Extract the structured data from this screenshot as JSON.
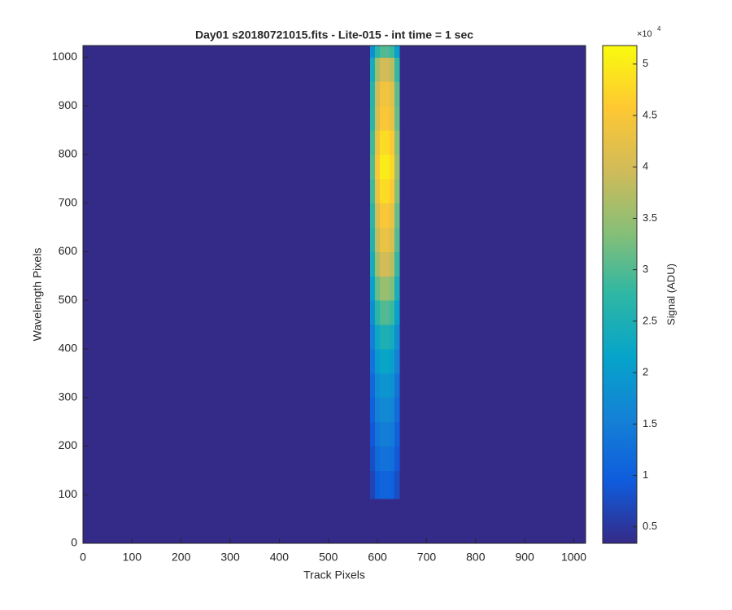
{
  "chart_data": {
    "type": "heatmap",
    "title": "Day01  s20180721015.fits - Lite-015 - int time = 1 sec",
    "xlabel": "Track Pixels",
    "ylabel": "Wavelength Pixels",
    "colorbar_label": "Signal (ADU)",
    "colorbar_scale": {
      "base": "×10",
      "exponent": "4"
    },
    "xlim": [
      0,
      1024
    ],
    "ylim": [
      0,
      1024
    ],
    "xticks": [
      0,
      100,
      200,
      300,
      400,
      500,
      600,
      700,
      800,
      900,
      1000
    ],
    "yticks": [
      0,
      100,
      200,
      300,
      400,
      500,
      600,
      700,
      800,
      900,
      1000
    ],
    "clim": [
      3400,
      51800
    ],
    "cticks": [
      {
        "value": 5000,
        "label": "0.5"
      },
      {
        "value": 10000,
        "label": "1"
      },
      {
        "value": 15000,
        "label": "1.5"
      },
      {
        "value": 20000,
        "label": "2"
      },
      {
        "value": 25000,
        "label": "2.5"
      },
      {
        "value": 30000,
        "label": "3"
      },
      {
        "value": 35000,
        "label": "3.5"
      },
      {
        "value": 40000,
        "label": "4"
      },
      {
        "value": 45000,
        "label": "4.5"
      },
      {
        "value": 50000,
        "label": "5"
      }
    ],
    "colormap": [
      "#352a87",
      "#0f5cdd",
      "#1481d6",
      "#06a4ca",
      "#2eb7a4",
      "#87bf77",
      "#d1bb59",
      "#fec832",
      "#f9fb0e"
    ],
    "x_bins": [
      0,
      585,
      595,
      605,
      615,
      625,
      635,
      645,
      1024
    ],
    "y_bins": [
      0,
      92,
      150,
      200,
      250,
      300,
      350,
      400,
      450,
      500,
      550,
      600,
      650,
      700,
      750,
      800,
      850,
      900,
      950,
      1000,
      1024
    ],
    "z": [
      [
        3500,
        3500,
        3500,
        3500,
        3500,
        3500,
        3500,
        3500
      ],
      [
        3500,
        6600,
        9900,
        11000,
        11000,
        10500,
        7700,
        3500
      ],
      [
        3500,
        7800,
        11700,
        13000,
        13000,
        12400,
        9100,
        3500
      ],
      [
        3500,
        9000,
        13500,
        15000,
        15000,
        14300,
        10500,
        3500
      ],
      [
        3500,
        10200,
        15300,
        17000,
        17000,
        16200,
        11900,
        3500
      ],
      [
        3500,
        11400,
        17100,
        19000,
        19000,
        18100,
        13300,
        3500
      ],
      [
        3500,
        13200,
        19800,
        22000,
        22000,
        20900,
        15400,
        3500
      ],
      [
        3500,
        15000,
        22500,
        25000,
        25000,
        23800,
        17500,
        3500
      ],
      [
        3500,
        18000,
        27000,
        30000,
        30000,
        28500,
        21000,
        3500
      ],
      [
        3500,
        21000,
        31500,
        35000,
        35000,
        33300,
        24500,
        3500
      ],
      [
        3500,
        24000,
        36000,
        40000,
        40000,
        38000,
        28000,
        3500
      ],
      [
        3500,
        25800,
        38700,
        43000,
        43000,
        40900,
        30100,
        3500
      ],
      [
        3500,
        27000,
        40500,
        45000,
        45000,
        42800,
        31500,
        3500
      ],
      [
        3500,
        28800,
        43200,
        48000,
        48000,
        45600,
        33600,
        3500
      ],
      [
        3500,
        30000,
        45000,
        50000,
        50000,
        47500,
        35000,
        3500
      ],
      [
        3500,
        28800,
        43200,
        48000,
        48000,
        45600,
        33600,
        3500
      ],
      [
        3500,
        27000,
        40500,
        45000,
        45000,
        42800,
        31500,
        3500
      ],
      [
        3500,
        26400,
        39600,
        44000,
        44000,
        41800,
        30800,
        3500
      ],
      [
        3500,
        24000,
        36000,
        40000,
        40000,
        38000,
        28000,
        3500
      ],
      [
        3500,
        18000,
        27000,
        30000,
        30000,
        28500,
        21000,
        3500
      ]
    ]
  }
}
